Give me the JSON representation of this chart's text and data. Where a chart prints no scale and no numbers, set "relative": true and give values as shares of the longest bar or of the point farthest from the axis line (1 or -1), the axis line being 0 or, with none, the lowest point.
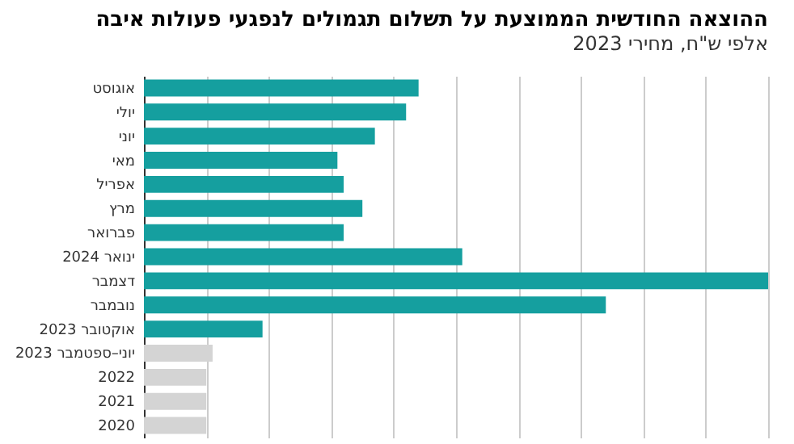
{
  "chart_data": {
    "type": "bar",
    "orientation": "horizontal",
    "relative": true,
    "grid": "x",
    "title": "ההוצאה החודשית הממוצעת על תשלום תגמולים לנפגעי פעולות איבה",
    "subtitle": "אלפי ש\"ח, מחירי 2023",
    "categories": [
      "אוגוסט",
      "יולי",
      "יוני",
      "מאי",
      "אפריל",
      "מרץ",
      "פברואר",
      "ינואר 2024",
      "דצמבר",
      "נובמבר",
      "אוקטובר 2023",
      "יוני–ספטמבר 2023",
      "2022",
      "2021",
      "2020"
    ],
    "values": [
      0.44,
      0.42,
      0.37,
      0.31,
      0.32,
      0.35,
      0.32,
      0.51,
      1,
      0.74,
      0.19,
      0.11,
      0.1,
      0.1,
      0.1
    ],
    "colors": [
      "#159f9f",
      "#159f9f",
      "#159f9f",
      "#159f9f",
      "#159f9f",
      "#159f9f",
      "#159f9f",
      "#159f9f",
      "#159f9f",
      "#159f9f",
      "#159f9f",
      "#d4d4d4",
      "#d4d4d4",
      "#d4d4d4",
      "#d4d4d4"
    ]
  }
}
